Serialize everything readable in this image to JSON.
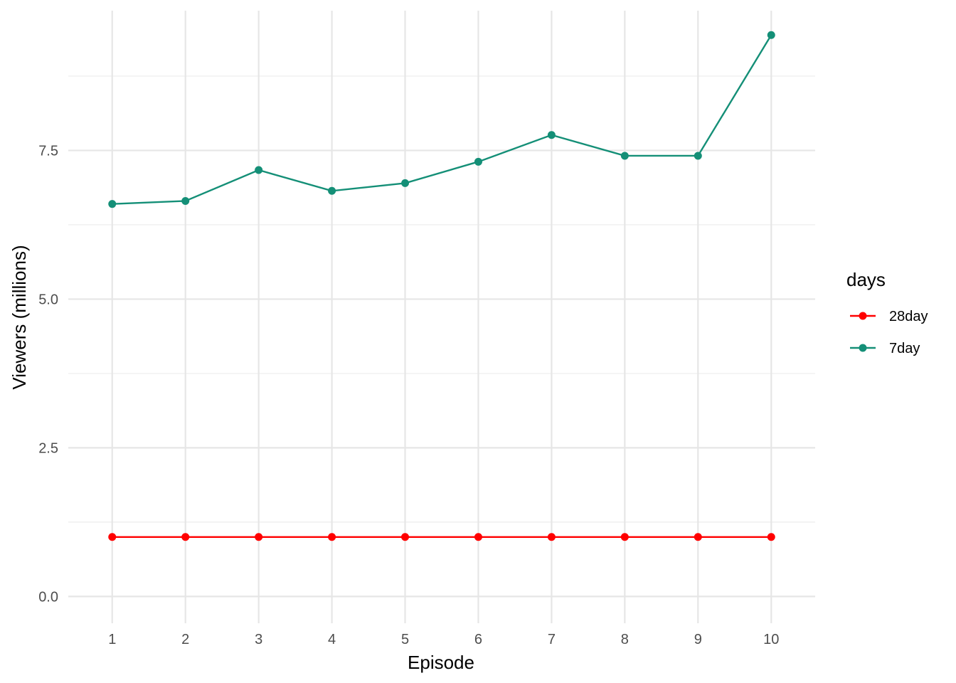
{
  "chart_data": {
    "type": "line",
    "title": "",
    "xlabel": "Episode",
    "ylabel": "Viewers (millions)",
    "x": [
      1,
      2,
      3,
      4,
      5,
      6,
      7,
      8,
      9,
      10
    ],
    "xlim": [
      0.4,
      10.6
    ],
    "ylim": [
      -0.45,
      9.85
    ],
    "y_ticks": [
      0.0,
      2.5,
      5.0,
      7.5
    ],
    "y_tick_labels": [
      "0.0",
      "2.5",
      "5.0",
      "7.5"
    ],
    "y_minor_ticks": [
      1.25,
      3.75,
      6.25,
      8.75
    ],
    "x_tick_labels": [
      "1",
      "2",
      "3",
      "4",
      "5",
      "6",
      "7",
      "8",
      "9",
      "10"
    ],
    "grid": true,
    "legend": {
      "title": "days",
      "position": "right"
    },
    "series": [
      {
        "name": "28day",
        "color": "#ff0000",
        "values": [
          1.0,
          1.0,
          1.0,
          1.0,
          1.0,
          1.0,
          1.0,
          1.0,
          1.0,
          1.0
        ]
      },
      {
        "name": "7day",
        "color": "#148f77",
        "values": [
          6.6,
          6.65,
          7.17,
          6.82,
          6.95,
          7.31,
          7.76,
          7.41,
          7.41,
          9.44
        ]
      }
    ]
  }
}
